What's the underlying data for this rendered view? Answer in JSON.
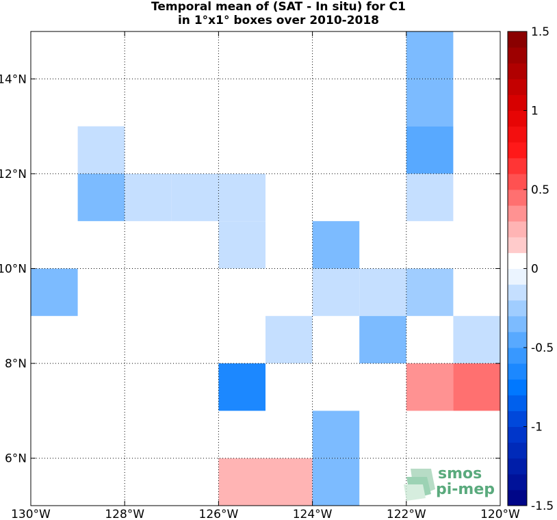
{
  "chart_data": {
    "type": "heatmap",
    "title": "Temporal mean of (SAT - In situ) for C1",
    "subtitle": "in 1°x1° boxes over 2010-2018",
    "xlim": [
      -130,
      -120
    ],
    "ylim": [
      5,
      15
    ],
    "x_ticks": [
      -130,
      -128,
      -126,
      -124,
      -122,
      -120
    ],
    "x_tick_labels": [
      "130°W",
      "128°W",
      "126°W",
      "124°W",
      "122°W",
      "120°W"
    ],
    "y_ticks": [
      6,
      8,
      10,
      12,
      14
    ],
    "y_tick_labels": [
      "6°N",
      "8°N",
      "10°N",
      "12°N",
      "14°N"
    ],
    "grid": true,
    "cells": [
      {
        "lon": -122,
        "lat": 14,
        "value": -0.35
      },
      {
        "lon": -122,
        "lat": 13,
        "value": -0.35
      },
      {
        "lon": -122,
        "lat": 12,
        "value": -0.45
      },
      {
        "lon": -122,
        "lat": 11,
        "value": -0.15
      },
      {
        "lon": -129,
        "lat": 12,
        "value": -0.15
      },
      {
        "lon": -129,
        "lat": 11,
        "value": -0.35
      },
      {
        "lon": -128,
        "lat": 11,
        "value": -0.15
      },
      {
        "lon": -127,
        "lat": 11,
        "value": -0.15
      },
      {
        "lon": -126,
        "lat": 11,
        "value": -0.15
      },
      {
        "lon": -126,
        "lat": 10,
        "value": -0.15
      },
      {
        "lon": -124,
        "lat": 10,
        "value": -0.35
      },
      {
        "lon": -130,
        "lat": 9,
        "value": -0.35
      },
      {
        "lon": -124,
        "lat": 9,
        "value": -0.15
      },
      {
        "lon": -123,
        "lat": 9,
        "value": -0.15
      },
      {
        "lon": -122,
        "lat": 9,
        "value": -0.25
      },
      {
        "lon": -125,
        "lat": 8,
        "value": -0.15
      },
      {
        "lon": -123,
        "lat": 8,
        "value": -0.35
      },
      {
        "lon": -121,
        "lat": 8,
        "value": -0.15
      },
      {
        "lon": -126,
        "lat": 7,
        "value": -0.65
      },
      {
        "lon": -122,
        "lat": 7,
        "value": 0.35
      },
      {
        "lon": -121,
        "lat": 7,
        "value": 0.45
      },
      {
        "lon": -124,
        "lat": 6,
        "value": -0.35
      },
      {
        "lon": -126,
        "lat": 5,
        "value": 0.25
      },
      {
        "lon": -125,
        "lat": 5,
        "value": 0.25
      },
      {
        "lon": -124,
        "lat": 5,
        "value": -0.35
      }
    ],
    "colorbar": {
      "min": -1.5,
      "max": 1.5,
      "step": 0.1,
      "tick_values": [
        1.5,
        1,
        0.5,
        0,
        -0.5,
        -1,
        -1.5
      ],
      "tick_labels": [
        "1.5",
        "1",
        "0.5",
        "0",
        "-0.5",
        "-1",
        "-1.5"
      ]
    }
  },
  "logo": {
    "line1": "smos",
    "line2": "pi-mep"
  }
}
